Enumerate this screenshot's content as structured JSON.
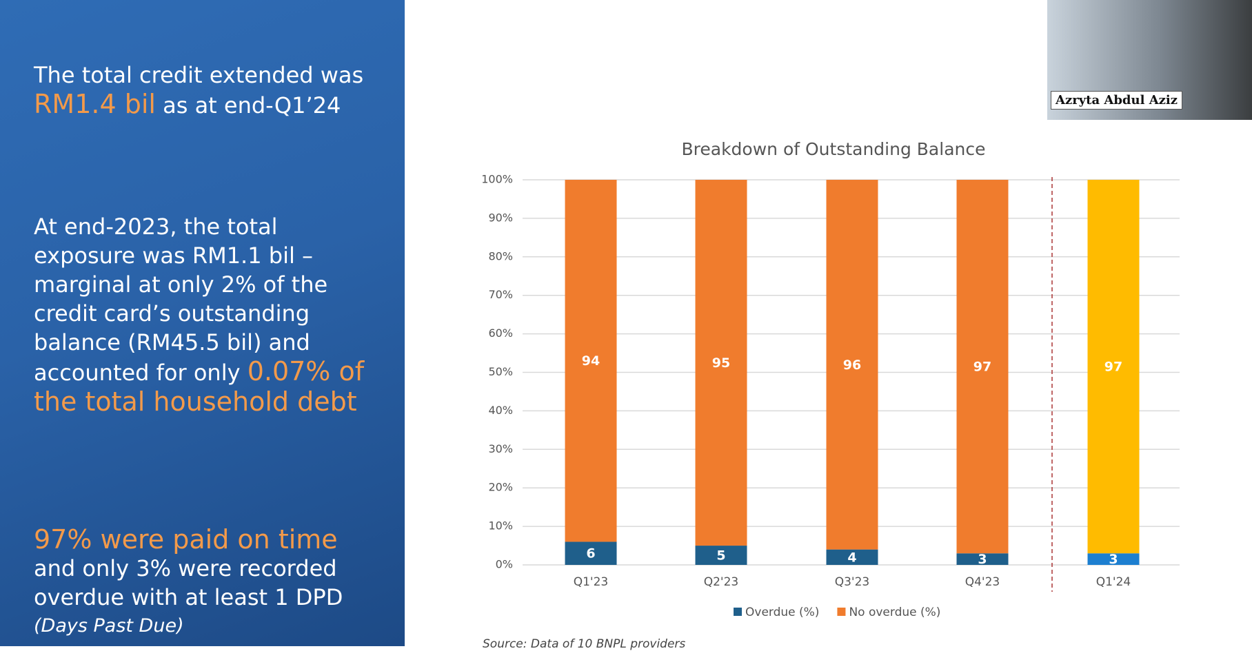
{
  "slide": {
    "point1": {
      "before": "The total credit extended was",
      "highlight": "RM1.4 bil",
      "after": "as at end-Q1’24"
    },
    "point2": {
      "before": "At end-2023, the total exposure was RM1.1 bil – marginal at only 2% of the credit card’s outstanding balance (RM45.5 bil) and accounted for only",
      "highlight": "0.07% of the total household debt"
    },
    "point3": {
      "highlight": "97% were paid on time",
      "after": "and only 3% were recorded overdue with at least 1 DPD",
      "note": "(Days Past Due)"
    },
    "source": "Source: Data of 10 BNPL providers"
  },
  "video": {
    "name": "Azryta Abdul Aziz"
  },
  "chart_data": {
    "type": "stacked-bar",
    "title": "Breakdown of Outstanding Balance",
    "categories": [
      "Q1'23",
      "Q2'23",
      "Q3'23",
      "Q4'23",
      "Q1'24"
    ],
    "series": [
      {
        "name": "Overdue (%)",
        "color": "#1f5f8b",
        "colors": [
          "#1f5f8b",
          "#1f5f8b",
          "#1f5f8b",
          "#1f5f8b",
          "#1d7fd0"
        ],
        "values": [
          6,
          5,
          4,
          3,
          3
        ]
      },
      {
        "name": "No overdue (%)",
        "color": "#f07c2d",
        "colors": [
          "#f07c2d",
          "#f07c2d",
          "#f07c2d",
          "#f07c2d",
          "#ffbb00"
        ],
        "values": [
          94,
          95,
          96,
          97,
          97
        ]
      }
    ],
    "ylim": [
      0,
      100
    ],
    "yticks": [
      {
        "value": 0,
        "label": "0%"
      },
      {
        "value": 10,
        "label": "10%"
      },
      {
        "value": 20,
        "label": "20%"
      },
      {
        "value": 30,
        "label": "30%"
      },
      {
        "value": 40,
        "label": "40%"
      },
      {
        "value": 50,
        "label": "50%"
      },
      {
        "value": 60,
        "label": "60%"
      },
      {
        "value": 70,
        "label": "70%"
      },
      {
        "value": 80,
        "label": "80%"
      },
      {
        "value": 90,
        "label": "90%"
      },
      {
        "value": 100,
        "label": "100%"
      }
    ],
    "grid": true,
    "legend": "bottom"
  }
}
